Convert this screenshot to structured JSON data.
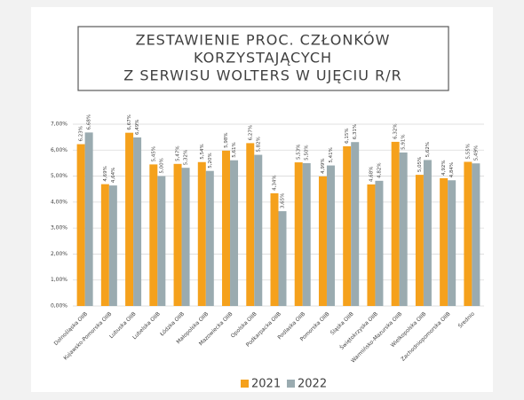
{
  "chart_data": {
    "type": "bar",
    "title": [
      "ZESTAWIENIE PROC. CZŁONKÓW",
      "KORZYSTAJĄCYCH",
      "Z SERWISU WOLTERS W UJĘCIU R/R"
    ],
    "categories": [
      "Dolnośląska OIIB",
      "Kujawsko-Pomorska OIIB",
      "Lubuska OIIB",
      "Lubelska OIIB",
      "Łódzka OIIB",
      "Małopolska OIIB",
      "Mazowiecka OIIB",
      "Opolska OIIB",
      "Podkarpacka OIIB",
      "Podlaska OIIB",
      "Pomorska OIIB",
      "Śląska OIIB",
      "Świętokrzyska OIIB",
      "Warmińsko-Mazurska OIIB",
      "Wielkopolska OIIB",
      "Zachodniopomorska OIIB",
      "Średnio"
    ],
    "series": [
      {
        "name": "2021",
        "color": "#f5a11c",
        "values": [
          6.23,
          4.69,
          6.67,
          5.45,
          5.47,
          5.54,
          5.98,
          6.27,
          4.34,
          5.53,
          4.99,
          6.15,
          4.68,
          6.32,
          5.05,
          4.92,
          5.55
        ],
        "value_labels": [
          "6,23%",
          "4,69%",
          "6,67%",
          "5,45%",
          "5,47%",
          "5,54%",
          "5,98%",
          "6,27%",
          "4,34%",
          "5,53%",
          "4,99%",
          "6,15%",
          "4,68%",
          "6,32%",
          "5,05%",
          "4,92%",
          "5,55%"
        ]
      },
      {
        "name": "2022",
        "color": "#9aabb0",
        "values": [
          6.68,
          4.64,
          6.49,
          5.0,
          5.32,
          5.2,
          5.61,
          5.82,
          3.65,
          5.5,
          5.41,
          6.31,
          4.82,
          5.91,
          5.62,
          4.84,
          5.49
        ],
        "value_labels": [
          "6,68%",
          "4,64%",
          "6,49%",
          "5,00%",
          "5,32%",
          "5,20%",
          "5,61%",
          "5,82%",
          "3,65%",
          "5,50%",
          "5,41%",
          "6,31%",
          "4,82%",
          "5,91%",
          "5,62%",
          "4,84%",
          "5,49%"
        ]
      }
    ],
    "ylim": [
      0,
      7
    ],
    "yticks": [
      {
        "value": 0,
        "label": "0,00%"
      },
      {
        "value": 1,
        "label": "1,00%"
      },
      {
        "value": 2,
        "label": "2,00%"
      },
      {
        "value": 3,
        "label": "3,00%"
      },
      {
        "value": 4,
        "label": "4,00%"
      },
      {
        "value": 5,
        "label": "5,00%"
      },
      {
        "value": 6,
        "label": "6,00%"
      },
      {
        "value": 7,
        "label": "7,00%"
      }
    ],
    "grid": true,
    "legend": "bottom"
  }
}
